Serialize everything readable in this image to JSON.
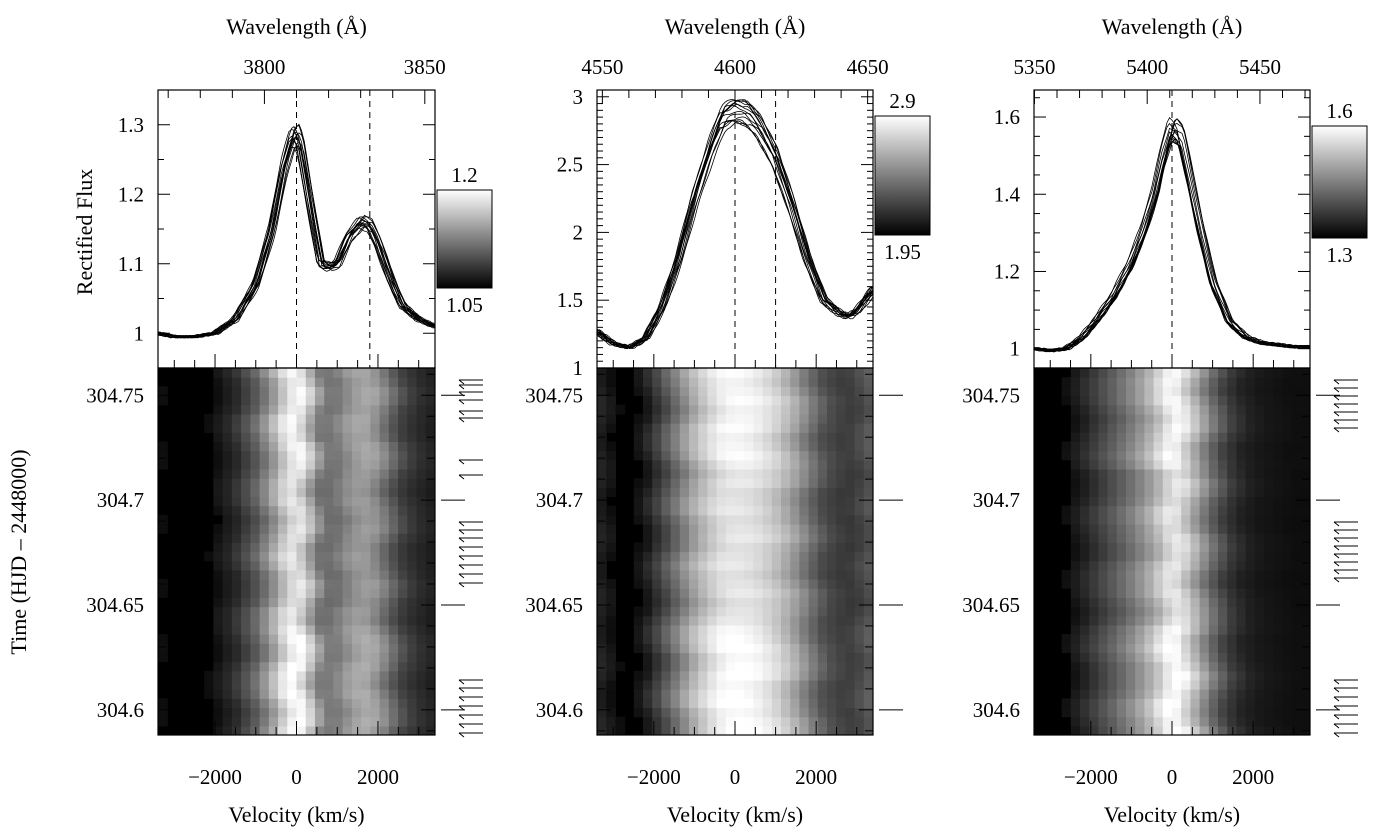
{
  "figure": {
    "ylabel_left": "Rectified Flux",
    "time_axis_label": "Time  (HJD – 2448000)"
  },
  "chart_data": [
    {
      "type": "line",
      "xlabel": "Velocity (km/s)",
      "top_xlabel": "Wavelength (Å)",
      "xlim": [
        -3400,
        3400
      ],
      "x_ticks": [
        -2000,
        0,
        2000
      ],
      "x_tick_labels": [
        "−2000",
        "0",
        "2000"
      ],
      "top_ticks": [
        3800,
        3850
      ],
      "top_tick_labels": [
        "3800",
        "3850"
      ],
      "wl_rest": 3810,
      "wl_per_1000": 12.7,
      "ylim": [
        0.95,
        1.35
      ],
      "y_ticks": [
        1.0,
        1.1,
        1.2,
        1.3
      ],
      "y_tick_labels": [
        "1",
        "1.1",
        "1.2",
        "1.3"
      ],
      "dashed_lines_velocity": [
        0,
        1800
      ],
      "profile": {
        "x": [
          -3400,
          -3000,
          -2500,
          -2000,
          -1500,
          -1000,
          -600,
          -300,
          -100,
          0,
          100,
          300,
          600,
          800,
          1000,
          1300,
          1600,
          1800,
          2000,
          2300,
          2600,
          3000,
          3400
        ],
        "y": [
          1.0,
          0.995,
          0.995,
          1.0,
          1.02,
          1.07,
          1.15,
          1.24,
          1.28,
          1.285,
          1.27,
          1.2,
          1.1,
          1.095,
          1.1,
          1.14,
          1.16,
          1.155,
          1.13,
          1.08,
          1.04,
          1.02,
          1.01
        ]
      },
      "colorbar": {
        "top_label": "1.2",
        "bottom_label": "1.05"
      },
      "time_ticks": [
        304.6,
        304.65,
        304.7,
        304.75
      ],
      "time_tick_labels": [
        "304.6",
        "304.65",
        "304.7",
        "304.75"
      ],
      "time_range": [
        304.588,
        304.763
      ]
    },
    {
      "type": "line",
      "xlabel": "Velocity (km/s)",
      "top_xlabel": "Wavelength (Å)",
      "xlim": [
        -3400,
        3400
      ],
      "x_ticks": [
        -2000,
        0,
        2000
      ],
      "x_tick_labels": [
        "−2000",
        "0",
        "2000"
      ],
      "top_ticks": [
        4550,
        4600,
        4650
      ],
      "top_tick_labels": [
        "4550",
        "4600",
        "4650"
      ],
      "wl_rest": 4600,
      "wl_per_1000": 15.3,
      "ylim": [
        1.0,
        3.05
      ],
      "y_ticks": [
        1.0,
        1.5,
        2.0,
        2.5,
        3.0
      ],
      "y_tick_labels": [
        "1",
        "1.5",
        "2",
        "2.5",
        "3"
      ],
      "dashed_lines_velocity": [
        0,
        1000
      ],
      "profile": {
        "x": [
          -3400,
          -3000,
          -2600,
          -2200,
          -1800,
          -1400,
          -1000,
          -600,
          -300,
          0,
          300,
          600,
          1000,
          1400,
          1800,
          2200,
          2600,
          2800,
          3000,
          3400
        ],
        "y": [
          1.27,
          1.18,
          1.15,
          1.22,
          1.45,
          1.8,
          2.25,
          2.62,
          2.85,
          2.9,
          2.88,
          2.78,
          2.55,
          2.2,
          1.8,
          1.5,
          1.4,
          1.38,
          1.42,
          1.58
        ]
      },
      "colorbar": {
        "top_label": "2.9",
        "bottom_label": "1.95"
      },
      "time_ticks": [
        304.6,
        304.65,
        304.7,
        304.75
      ],
      "time_tick_labels": [
        "304.6",
        "304.65",
        "304.7",
        "304.75"
      ],
      "time_range": [
        304.588,
        304.763
      ]
    },
    {
      "type": "line",
      "xlabel": "Velocity (km/s)",
      "top_xlabel": "Wavelength (Å)",
      "xlim": [
        -3400,
        3400
      ],
      "x_ticks": [
        -2000,
        0,
        2000
      ],
      "x_tick_labels": [
        "−2000",
        "0",
        "2000"
      ],
      "top_ticks": [
        5350,
        5400,
        5450
      ],
      "top_tick_labels": [
        "5350",
        "5400",
        "5450"
      ],
      "wl_rest": 5411,
      "wl_per_1000": 18.0,
      "ylim": [
        0.95,
        1.67
      ],
      "y_ticks": [
        1.0,
        1.2,
        1.4,
        1.6
      ],
      "y_tick_labels": [
        "1",
        "1.2",
        "1.4",
        "1.6"
      ],
      "dashed_lines_velocity": [
        0
      ],
      "profile": {
        "x": [
          -3400,
          -3000,
          -2600,
          -2200,
          -1800,
          -1400,
          -1000,
          -700,
          -400,
          -200,
          0,
          200,
          400,
          700,
          1000,
          1400,
          1800,
          2200,
          2600,
          3000,
          3400
        ],
        "y": [
          1.0,
          0.995,
          1.0,
          1.03,
          1.08,
          1.14,
          1.22,
          1.3,
          1.4,
          1.5,
          1.57,
          1.55,
          1.45,
          1.3,
          1.17,
          1.07,
          1.03,
          1.015,
          1.01,
          1.005,
          1.005
        ]
      },
      "colorbar": {
        "top_label": "1.6",
        "bottom_label": "1.3"
      },
      "time_ticks": [
        304.6,
        304.65,
        304.7,
        304.75
      ],
      "time_tick_labels": [
        "304.6",
        "304.65",
        "304.7",
        "304.75"
      ],
      "time_range": [
        304.588,
        304.763
      ]
    }
  ]
}
